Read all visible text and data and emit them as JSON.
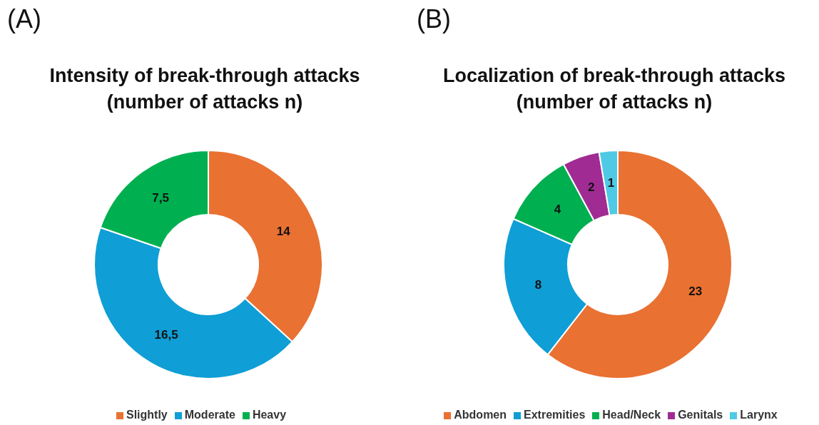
{
  "chart_data": [
    {
      "type": "donut",
      "title": "Intensity of break-through attacks (number of attacks n)",
      "annotations": [
        "(A)"
      ],
      "categories": [
        "Slightly",
        "Moderate",
        "Heavy"
      ],
      "values": [
        14,
        16.5,
        7.5
      ],
      "value_labels": [
        "14",
        "16,5",
        "7,5"
      ],
      "colors": [
        "#e97132",
        "#0f9ed5",
        "#00b050"
      ],
      "legend": "bottom"
    },
    {
      "type": "donut",
      "title": "Localization of break-through attacks (number of attacks n)",
      "annotations": [
        "(B)"
      ],
      "categories": [
        "Abdomen",
        "Extremities",
        "Head/Neck",
        "Genitals",
        "Larynx"
      ],
      "values": [
        23,
        8,
        4,
        2,
        1
      ],
      "data_labels": true,
      "colors": [
        "#e97132",
        "#0f9ed5",
        "#00b050",
        "#a02b93",
        "#4ecae5"
      ],
      "legend": "bottom"
    }
  ]
}
